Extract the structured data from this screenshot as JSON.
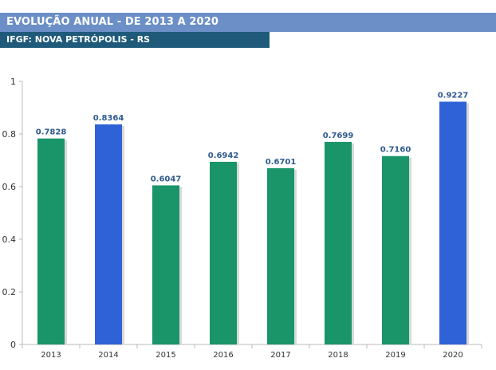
{
  "header": {
    "title": "EVOLUÇÃO ANUAL - DE 2013 A 2020",
    "subtitle": "IFGF: NOVA PETRÓPOLIS - RS"
  },
  "chart_data": {
    "type": "bar",
    "categories": [
      "2013",
      "2014",
      "2015",
      "2016",
      "2017",
      "2018",
      "2019",
      "2020"
    ],
    "values": [
      0.7828,
      0.8364,
      0.6047,
      0.6942,
      0.6701,
      0.7699,
      0.716,
      0.9227
    ],
    "value_labels": [
      "0.7828",
      "0.8364",
      "0.6047",
      "0.6942",
      "0.6701",
      "0.7699",
      "0.7160",
      "0.9227"
    ],
    "bar_colors": [
      "#1a9469",
      "#2f62d6",
      "#1a9469",
      "#1a9469",
      "#1a9469",
      "#1a9469",
      "#1a9469",
      "#2f62d6"
    ],
    "y_ticks": [
      "0",
      "0.2",
      "0.4",
      "0.6",
      "0.8",
      "1"
    ],
    "ylim": [
      0,
      1
    ],
    "grid": false,
    "legend": "none"
  }
}
